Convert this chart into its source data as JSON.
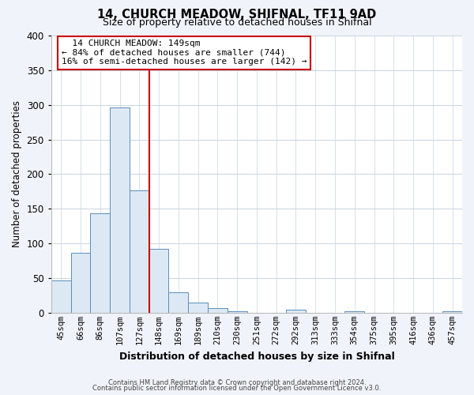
{
  "title": "14, CHURCH MEADOW, SHIFNAL, TF11 9AD",
  "subtitle": "Size of property relative to detached houses in Shifnal",
  "xlabel": "Distribution of detached houses by size in Shifnal",
  "ylabel": "Number of detached properties",
  "bar_labels": [
    "45sqm",
    "66sqm",
    "86sqm",
    "107sqm",
    "127sqm",
    "148sqm",
    "169sqm",
    "189sqm",
    "210sqm",
    "230sqm",
    "251sqm",
    "272sqm",
    "292sqm",
    "313sqm",
    "333sqm",
    "354sqm",
    "375sqm",
    "395sqm",
    "416sqm",
    "436sqm",
    "457sqm"
  ],
  "bar_values": [
    47,
    86,
    144,
    296,
    176,
    92,
    30,
    15,
    7,
    2,
    0,
    0,
    4,
    0,
    0,
    2,
    0,
    0,
    0,
    0,
    2
  ],
  "bar_fill_color": "#dce9f5",
  "bar_edge_color": "#5b8db8",
  "vline_x_index": 5,
  "vline_color": "#cc0000",
  "ylim": [
    0,
    400
  ],
  "yticks": [
    0,
    50,
    100,
    150,
    200,
    250,
    300,
    350,
    400
  ],
  "annotation_title": "14 CHURCH MEADOW: 149sqm",
  "annotation_line1": "← 84% of detached houses are smaller (744)",
  "annotation_line2": "16% of semi-detached houses are larger (142) →",
  "annotation_box_facecolor": "#ffffff",
  "annotation_box_edgecolor": "#cc0000",
  "footer_line1": "Contains HM Land Registry data © Crown copyright and database right 2024.",
  "footer_line2": "Contains public sector information licensed under the Open Government Licence v3.0.",
  "grid_color": "#c8d4e0",
  "plot_bg_color": "#ffffff",
  "fig_bg_color": "#f0f4fa"
}
